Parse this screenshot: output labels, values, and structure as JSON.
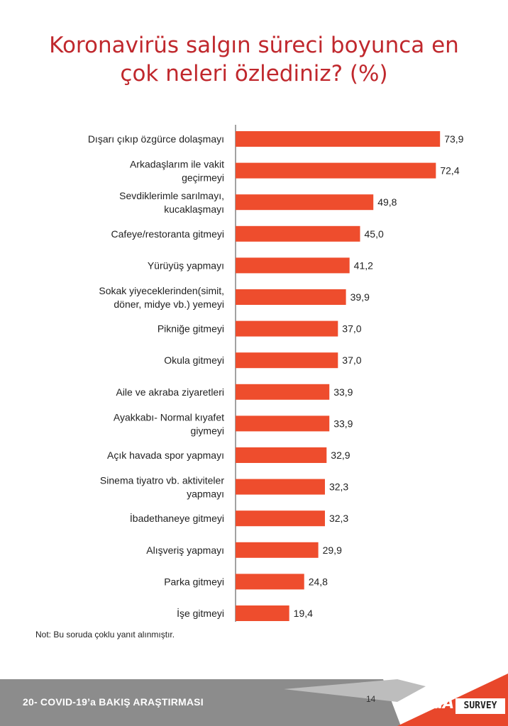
{
  "title": {
    "line1": "Koronavirüs salgın süreci boyunca en",
    "line2": "çok neleri özlediniz? (%)"
  },
  "colors": {
    "title": "#c0282d",
    "bar": "#ee4d2d",
    "footer_bg": "#8c8c8c",
    "accent": "#e8472b"
  },
  "chart_data": {
    "type": "bar",
    "orientation": "horizontal",
    "title": "Koronavirüs salgın süreci boyunca en çok neleri özlediniz? (%)",
    "categories": [
      [
        "Dışarı çıkıp özgürce dolaşmayı"
      ],
      [
        "Arkadaşlarım ile vakit",
        "geçirmeyi"
      ],
      [
        "Sevdiklerimle sarılmayı,",
        "kucaklaşmayı"
      ],
      [
        "Cafeye/restoranta gitmeyi"
      ],
      [
        "Yürüyüş yapmayı"
      ],
      [
        "Sokak yiyeceklerinden(simit,",
        "döner, midye vb.) yemeyi"
      ],
      [
        "Pikniğe gitmeyi"
      ],
      [
        "Okula gitmeyi"
      ],
      [
        "Aile ve akraba ziyaretleri"
      ],
      [
        "Ayakkabı- Normal kıyafet",
        "giymeyi"
      ],
      [
        "Açık havada spor yapmayı"
      ],
      [
        "Sinema tiyatro vb. aktiviteler",
        "yapmayı"
      ],
      [
        "İbadethaneye gitmeyi"
      ],
      [
        "Alışveriş yapmayı"
      ],
      [
        "Parka gitmeyi"
      ],
      [
        "İşe gitmeyi"
      ]
    ],
    "values": [
      73.9,
      72.4,
      49.8,
      45.0,
      41.2,
      39.9,
      37.0,
      37.0,
      33.9,
      33.9,
      32.9,
      32.3,
      32.3,
      29.9,
      24.8,
      19.4
    ],
    "value_labels": [
      "73,9",
      "72,4",
      "49,8",
      "45,0",
      "41,2",
      "39,9",
      "37,0",
      "37,0",
      "33,9",
      "33,9",
      "32,9",
      "32,3",
      "32,3",
      "29,9",
      "24,8",
      "19,4"
    ],
    "xlim": [
      0,
      100
    ],
    "grid": false,
    "legend": false
  },
  "note": "Not: Bu soruda  çoklu yanıt alınmıştır.",
  "footer": {
    "report_title": "20- COVID-19’a BAKIŞ ARAŞTIRMASI",
    "page_number": "14",
    "logo_areda": "AredA",
    "logo_survey": "SURVEY"
  }
}
